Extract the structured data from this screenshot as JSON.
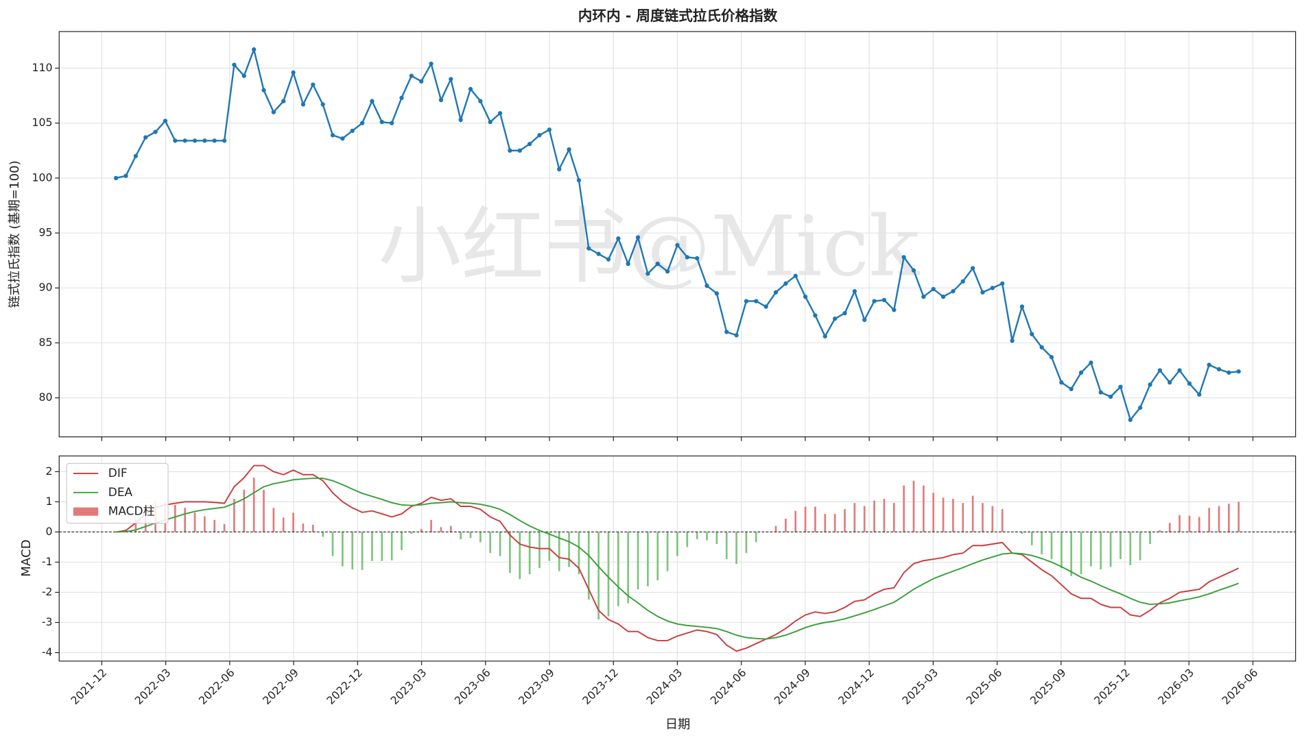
{
  "chart_data": [
    {
      "type": "line",
      "title": "内环内 - 周度链式拉氏价格指数",
      "ylabel": "链式拉氏指数 (基期=100)",
      "watermark": "小红书@Mick",
      "color": "#1f77b4",
      "grid": true,
      "values": [
        100,
        100.2,
        102,
        103.7,
        104.2,
        105.2,
        103.4,
        103.4,
        103.4,
        103.4,
        103.4,
        103.4,
        110.3,
        109.3,
        111.7,
        108,
        106,
        107,
        109.6,
        106.7,
        108.5,
        106.7,
        103.9,
        103.6,
        104.3,
        105,
        107,
        105.1,
        105,
        107.3,
        109.3,
        108.8,
        110.4,
        107.1,
        109,
        105.3,
        108.1,
        107,
        105.1,
        105.9,
        102.5,
        102.5,
        103.1,
        103.9,
        104.4,
        100.8,
        102.6,
        99.8,
        93.6,
        93.1,
        92.6,
        94.5,
        92.2,
        94.6,
        91.3,
        92.2,
        91.5,
        93.9,
        92.8,
        92.7,
        90.2,
        89.5,
        86,
        85.7,
        88.8,
        88.8,
        88.3,
        89.6,
        90.4,
        91.1,
        89.2,
        87.5,
        85.6,
        87.2,
        87.7,
        89.7,
        87.1,
        88.8,
        88.9,
        88,
        92.8,
        91.6,
        89.2,
        89.9,
        89.2,
        89.7,
        90.6,
        91.8,
        89.6,
        90,
        90.4,
        85.2,
        88.3,
        85.8,
        84.6,
        83.7,
        81.4,
        80.8,
        82.3,
        83.2,
        80.5,
        80.1,
        81,
        78,
        79.1,
        81.2,
        82.5,
        81.4,
        82.5,
        81.3,
        80.3,
        83,
        82.6,
        82.3,
        82.4
      ],
      "xlim": [
        "2021-10",
        "2026-08"
      ],
      "xticks": [
        "2021-12",
        "2022-03",
        "2022-06",
        "2022-09",
        "2022-12",
        "2023-03",
        "2023-06",
        "2023-09",
        "2023-12",
        "2024-03",
        "2024-06",
        "2024-09",
        "2024-12",
        "2025-03",
        "2025-06",
        "2025-09",
        "2025-12",
        "2026-03",
        "2026-06"
      ],
      "ylim": [
        76.45,
        113.33
      ],
      "yticks": [
        80,
        85,
        90,
        95,
        100,
        105,
        110
      ]
    },
    {
      "type": "macd",
      "xlabel": "日期",
      "ylabel": "MACD",
      "grid": true,
      "legend": "upper left",
      "zero_line": true,
      "xlim": [
        "2021-10",
        "2026-08"
      ],
      "xticks": [
        "2021-12",
        "2022-03",
        "2022-06",
        "2022-09",
        "2022-12",
        "2023-03",
        "2023-06",
        "2023-09",
        "2023-12",
        "2024-03",
        "2024-06",
        "2024-09",
        "2024-12",
        "2025-03",
        "2025-06",
        "2025-09",
        "2025-12",
        "2026-03",
        "2026-06"
      ],
      "ylim": [
        -4.28,
        2.52
      ],
      "yticks": [
        -4,
        -3,
        -2,
        -1,
        0,
        1,
        2
      ],
      "series": [
        {
          "name": "DIF",
          "color": "#cc3b3b",
          "kind": "line",
          "values": [
            0,
            0.05,
            0.3,
            0.6,
            0.8,
            0.9,
            0.95,
            1.0,
            1.0,
            1.0,
            0.98,
            0.95,
            1.5,
            1.8,
            2.2,
            2.2,
            2.0,
            1.9,
            2.05,
            1.9,
            1.9,
            1.7,
            1.3,
            1.0,
            0.8,
            0.65,
            0.7,
            0.6,
            0.5,
            0.6,
            0.85,
            0.95,
            1.15,
            1.05,
            1.1,
            0.85,
            0.85,
            0.75,
            0.5,
            0.35,
            -0.1,
            -0.4,
            -0.5,
            -0.55,
            -0.55,
            -0.85,
            -0.9,
            -1.2,
            -1.9,
            -2.6,
            -2.9,
            -3.05,
            -3.3,
            -3.3,
            -3.5,
            -3.6,
            -3.6,
            -3.45,
            -3.35,
            -3.25,
            -3.3,
            -3.4,
            -3.75,
            -3.95,
            -3.85,
            -3.7,
            -3.55,
            -3.4,
            -3.2,
            -2.95,
            -2.75,
            -2.65,
            -2.7,
            -2.65,
            -2.5,
            -2.3,
            -2.25,
            -2.05,
            -1.9,
            -1.85,
            -1.35,
            -1.05,
            -0.95,
            -0.9,
            -0.85,
            -0.75,
            -0.7,
            -0.45,
            -0.45,
            -0.4,
            -0.35,
            -0.7,
            -0.75,
            -1.0,
            -1.25,
            -1.45,
            -1.75,
            -2.05,
            -2.2,
            -2.2,
            -2.4,
            -2.5,
            -2.5,
            -2.75,
            -2.8,
            -2.6,
            -2.35,
            -2.2,
            -2.0,
            -1.95,
            -1.9,
            -1.65,
            -1.5,
            -1.35,
            -1.2
          ]
        },
        {
          "name": "DEA",
          "color": "#3a9e3a",
          "kind": "line",
          "values": [
            0,
            0.01,
            0.07,
            0.18,
            0.3,
            0.4,
            0.5,
            0.6,
            0.68,
            0.74,
            0.78,
            0.82,
            0.95,
            1.1,
            1.3,
            1.5,
            1.6,
            1.66,
            1.73,
            1.76,
            1.78,
            1.78,
            1.7,
            1.57,
            1.42,
            1.28,
            1.18,
            1.08,
            0.97,
            0.9,
            0.88,
            0.9,
            0.95,
            0.97,
            1.0,
            0.97,
            0.95,
            0.92,
            0.85,
            0.75,
            0.58,
            0.38,
            0.2,
            0.05,
            -0.07,
            -0.2,
            -0.32,
            -0.5,
            -0.78,
            -1.15,
            -1.5,
            -1.82,
            -2.12,
            -2.35,
            -2.6,
            -2.8,
            -2.95,
            -3.05,
            -3.1,
            -3.13,
            -3.16,
            -3.2,
            -3.3,
            -3.42,
            -3.5,
            -3.53,
            -3.55,
            -3.5,
            -3.42,
            -3.3,
            -3.17,
            -3.07,
            -3.0,
            -2.95,
            -2.88,
            -2.78,
            -2.68,
            -2.57,
            -2.45,
            -2.33,
            -2.12,
            -1.9,
            -1.72,
            -1.55,
            -1.42,
            -1.3,
            -1.18,
            -1.05,
            -0.93,
            -0.83,
            -0.73,
            -0.7,
            -0.72,
            -0.78,
            -0.88,
            -1.0,
            -1.15,
            -1.32,
            -1.5,
            -1.63,
            -1.78,
            -1.92,
            -2.05,
            -2.2,
            -2.33,
            -2.4,
            -2.38,
            -2.35,
            -2.28,
            -2.22,
            -2.15,
            -2.05,
            -1.93,
            -1.82,
            -1.7
          ]
        },
        {
          "name": "MACD柱",
          "color": "#e07b7b",
          "negative_color": "#7cc47c",
          "kind": "bar",
          "values": [
            0,
            0.08,
            0.46,
            0.84,
            1.0,
            1.0,
            0.9,
            0.8,
            0.64,
            0.52,
            0.4,
            0.26,
            1.1,
            1.4,
            1.8,
            1.4,
            0.8,
            0.48,
            0.64,
            0.28,
            0.24,
            -0.16,
            -0.8,
            -1.14,
            -1.24,
            -1.26,
            -0.96,
            -0.96,
            -0.94,
            -0.6,
            -0.06,
            0.1,
            0.4,
            0.16,
            0.2,
            -0.24,
            -0.2,
            -0.34,
            -0.7,
            -0.8,
            -1.36,
            -1.56,
            -1.4,
            -1.2,
            -0.96,
            -1.3,
            -1.16,
            -1.4,
            -2.24,
            -2.9,
            -2.8,
            -2.46,
            -2.36,
            -1.9,
            -1.8,
            -1.6,
            -1.3,
            -0.8,
            -0.5,
            -0.24,
            -0.28,
            -0.4,
            -0.9,
            -1.06,
            -0.7,
            -0.34,
            0,
            0.2,
            0.44,
            0.7,
            0.84,
            0.84,
            0.6,
            0.6,
            0.76,
            0.96,
            0.86,
            1.04,
            1.1,
            0.96,
            1.54,
            1.7,
            1.54,
            1.3,
            1.14,
            1.1,
            0.96,
            1.2,
            0.96,
            0.86,
            0.76,
            0,
            -0.06,
            -0.44,
            -0.74,
            -0.9,
            -1.2,
            -1.46,
            -1.4,
            -1.14,
            -1.24,
            -1.16,
            -0.9,
            -1.1,
            -0.94,
            -0.4,
            0.06,
            0.3,
            0.56,
            0.54,
            0.5,
            0.8,
            0.86,
            0.94,
            1.0
          ]
        }
      ]
    }
  ]
}
